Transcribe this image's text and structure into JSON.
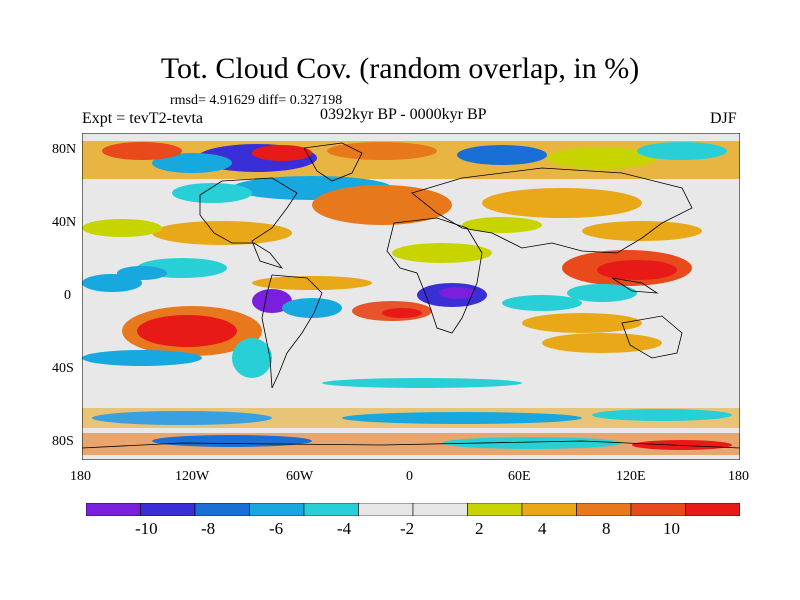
{
  "header": {
    "title": "Tot. Cloud Cov. (random overlap, in %)",
    "stats": "rmsd= 4.91629 diff= 0.327198",
    "experiment": "Expt = tevT2-tevta",
    "period": "0392kyr BP - 0000kyr BP",
    "season": "DJF"
  },
  "map": {
    "projection": "cylindrical-equidistant",
    "lat_range": [
      -90,
      90
    ],
    "lon_range": [
      -180,
      180
    ],
    "lat_ticks": [
      "80N",
      "40N",
      "0",
      "40S",
      "80S"
    ],
    "lon_ticks": [
      "180",
      "120W",
      "60W",
      "0",
      "60E",
      "120E",
      "180"
    ],
    "background_color": "#e8e8e8",
    "coastline_color": "#000000",
    "field": "total cloud cover difference (%)",
    "anomaly_regions": [
      {
        "area": "Indo-Pacific warm pool",
        "class": "8 to 10+",
        "color": "#e8322a"
      },
      {
        "area": "Southeast Pacific off South America",
        "class": "8 to 10+",
        "color": "#e8322a"
      },
      {
        "area": "Equatorial Atlantic / Gulf of Guinea",
        "class": "8 to 10+",
        "color": "#e8542a"
      },
      {
        "area": "Amazon basin",
        "class": "-10 to -8",
        "color": "#6a1fd6"
      },
      {
        "area": "Central Africa",
        "class": "-10 to -8",
        "color": "#3f3fd9"
      },
      {
        "area": "Arctic / Greenland",
        "class": "mixed strong",
        "color": "#2a5fd6"
      },
      {
        "area": "Southern Ocean band near 60-70S",
        "class": "mixed strong",
        "color": "#3aa0e0"
      }
    ]
  },
  "colorbar": {
    "colors": [
      "#7a1fdc",
      "#3a2fd6",
      "#1a6fd6",
      "#18a8e0",
      "#28cfd6",
      "#e6e6e6",
      "#e6e6e6",
      "#c8d400",
      "#e8a818",
      "#e8781c",
      "#e84a1c",
      "#e81a18"
    ],
    "labels": [
      "-10",
      "-8",
      "-6",
      "-4",
      "-2",
      "2",
      "4",
      "8",
      "10"
    ]
  }
}
